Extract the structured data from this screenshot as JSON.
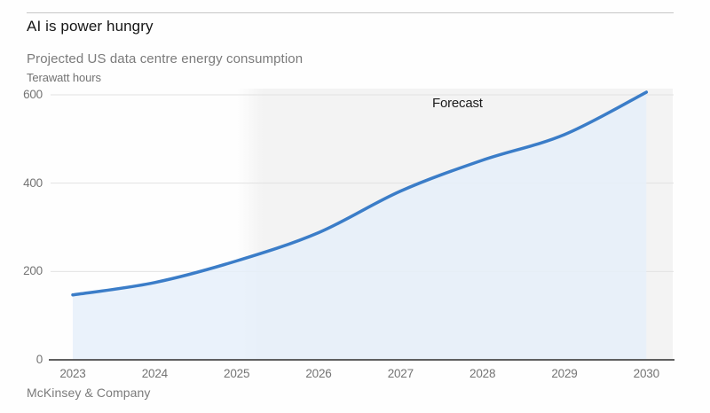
{
  "header": {
    "title": "AI is power hungry",
    "subtitle": "Projected US data centre energy consumption",
    "unit_label": "Terawatt hours"
  },
  "footer": {
    "source": "McKinsey & Company"
  },
  "chart_data": {
    "type": "area",
    "title": "AI is power hungry",
    "subtitle": "Projected US data centre energy consumption",
    "ylabel": "Terawatt hours",
    "xlabel": "",
    "categories": [
      "2023",
      "2024",
      "2025",
      "2026",
      "2027",
      "2028",
      "2029",
      "2030"
    ],
    "values": [
      147,
      175,
      224,
      288,
      382,
      452,
      510,
      606
    ],
    "ylim": [
      0,
      620
    ],
    "y_ticks": [
      0,
      200,
      400,
      600
    ],
    "grid": true,
    "legend_position": "none",
    "forecast": {
      "label": "Forecast",
      "start_category": "2025"
    },
    "colors": {
      "line": "#3b7dc8",
      "area_fill": "#e5effa",
      "forecast_bg": "#f3f3f3",
      "gridline": "#e2e2e2",
      "axis": "#4a4a4a"
    }
  }
}
